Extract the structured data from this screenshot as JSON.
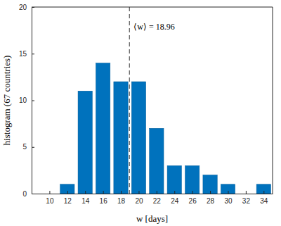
{
  "chart_data": {
    "type": "histogram",
    "x_label": "w [days]",
    "y_label": "histogram (67 countries)",
    "bins": [
      11,
      13,
      15,
      17,
      19,
      21,
      23,
      25,
      27,
      29,
      31,
      33,
      35
    ],
    "values": [
      1,
      11,
      14,
      12,
      12,
      7,
      3,
      3,
      2,
      1,
      0,
      1
    ],
    "color": "#0072bd",
    "xlim": [
      8,
      35
    ],
    "ylim": [
      0,
      20
    ],
    "xticks": [
      10,
      12,
      14,
      16,
      18,
      20,
      22,
      24,
      26,
      28,
      30,
      32,
      34
    ],
    "yticks": [
      0,
      5,
      10,
      15,
      20
    ],
    "vline": 18.96,
    "annotation": "⟨w⟩ = 18.96"
  }
}
